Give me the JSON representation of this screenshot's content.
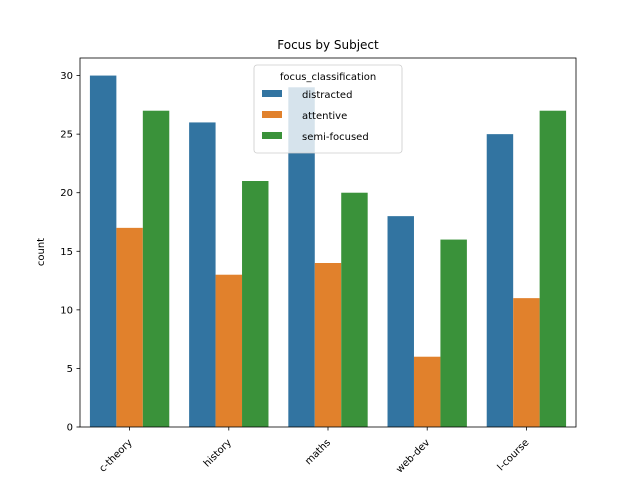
{
  "chart_data": {
    "type": "bar",
    "title": "Focus by Subject",
    "xlabel": "",
    "ylabel": "count",
    "categories": [
      "c-theory",
      "history",
      "maths",
      "web-dev",
      "l-course"
    ],
    "series": [
      {
        "name": "distracted",
        "values": [
          30,
          26,
          29,
          18,
          25
        ],
        "color": "#3274a1"
      },
      {
        "name": "attentive",
        "values": [
          17,
          13,
          14,
          6,
          11
        ],
        "color": "#e1812c"
      },
      {
        "name": "semi-focused",
        "values": [
          27,
          21,
          20,
          16,
          27
        ],
        "color": "#3a923a"
      }
    ],
    "ylim": [
      0,
      31.5
    ],
    "yticks": [
      0,
      5,
      10,
      15,
      20,
      25,
      30
    ],
    "legend": {
      "title": "focus_classification",
      "placement": "top-center"
    },
    "grid": false
  }
}
